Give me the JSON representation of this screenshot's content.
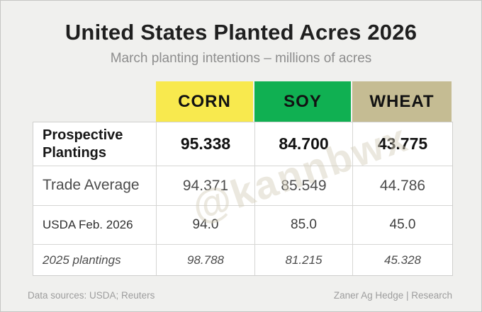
{
  "title": "United States Planted Acres 2026",
  "subtitle": "March planting intentions – millions of acres",
  "colors": {
    "background": "#f0f0ee",
    "corn_header": "#f8e94e",
    "soy_header": "#10b052",
    "wheat_header": "#c5bc93",
    "table_border": "#d6d6d4",
    "footer_text": "#9d9d9d"
  },
  "table": {
    "columns": [
      {
        "label": "CORN",
        "color": "#f8e94e"
      },
      {
        "label": "SOY",
        "color": "#10b052"
      },
      {
        "label": "WHEAT",
        "color": "#c5bc93"
      }
    ],
    "rows": [
      {
        "label": "Prospective Plantings",
        "values": [
          "95.338",
          "84.700",
          "43.775"
        ]
      },
      {
        "label": "Trade Average",
        "values": [
          "94.371",
          "85.549",
          "44.786"
        ]
      },
      {
        "label": "USDA Feb. 2026",
        "values": [
          "94.0",
          "85.0",
          "45.0"
        ]
      },
      {
        "label": "2025 plantings",
        "values": [
          "98.788",
          "81.215",
          "45.328"
        ]
      }
    ]
  },
  "watermark": "@kannbwx",
  "footer": {
    "left": "Data sources: USDA; Reuters",
    "right": "Zaner Ag Hedge | Research"
  },
  "chart_data": {
    "type": "table",
    "title": "United States Planted Acres 2026",
    "subtitle": "March planting intentions – millions of acres",
    "unit": "millions of acres",
    "columns": [
      "CORN",
      "SOY",
      "WHEAT"
    ],
    "rows": [
      {
        "label": "Prospective Plantings",
        "values": [
          95.338,
          84.7,
          43.775
        ]
      },
      {
        "label": "Trade Average",
        "values": [
          94.371,
          85.549,
          44.786
        ]
      },
      {
        "label": "USDA Feb. 2026",
        "values": [
          94.0,
          85.0,
          45.0
        ]
      },
      {
        "label": "2025 plantings",
        "values": [
          98.788,
          81.215,
          45.328
        ]
      }
    ]
  }
}
